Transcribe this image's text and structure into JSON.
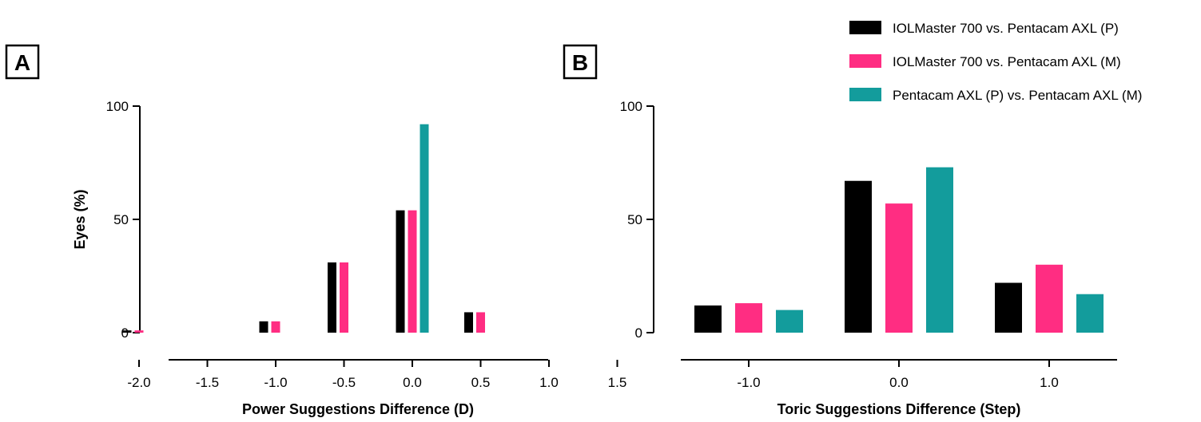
{
  "colors": {
    "series_p": "#000000",
    "series_m": "#ff2d82",
    "series_pm": "#139c9c"
  },
  "legend": {
    "placement": "top-right",
    "items": [
      {
        "label": "IOLMaster 700 vs. Pentacam AXL (P)",
        "color": "#000000"
      },
      {
        "label": "IOLMaster 700 vs. Pentacam AXL (M)",
        "color": "#ff2d82"
      },
      {
        "label": "Pentacam AXL (P) vs. Pentacam AXL (M)",
        "color": "#139c9c"
      }
    ]
  },
  "chart_data": [
    {
      "panel": "A",
      "type": "bar",
      "xlabel": "Power Suggestions Difference (D)",
      "ylabel": "Eyes (%)",
      "ylim": [
        0,
        100
      ],
      "yticks": [
        "0",
        "50",
        "100"
      ],
      "xlim": [
        -2.2,
        1.6
      ],
      "xticks": [
        "-2.0",
        "-1.5",
        "-1.0",
        "-0.5",
        "0.0",
        "0.5",
        "1.0",
        "1.5"
      ],
      "grid": false,
      "x": [
        -2.0,
        -1.0,
        -0.5,
        0.0,
        0.5
      ],
      "series": [
        {
          "name": "IOLMaster 700 vs. Pentacam AXL (P)",
          "values": [
            1,
            5,
            31,
            54,
            9
          ]
        },
        {
          "name": "IOLMaster 700 vs. Pentacam AXL (M)",
          "values": [
            1,
            5,
            31,
            54,
            9
          ]
        },
        {
          "name": "Pentacam AXL (P) vs. Pentacam AXL (M)",
          "values": [
            0,
            0,
            0,
            92,
            0
          ]
        }
      ]
    },
    {
      "panel": "B",
      "type": "bar",
      "xlabel": "Toric Suggestions Difference (Step)",
      "ylabel": "",
      "ylim": [
        0,
        100
      ],
      "yticks": [
        "0",
        "50",
        "100"
      ],
      "categories": [
        "-1.0",
        "0.0",
        "1.0"
      ],
      "grid": false,
      "series": [
        {
          "name": "IOLMaster 700 vs. Pentacam AXL (P)",
          "values": [
            12,
            67,
            22
          ]
        },
        {
          "name": "IOLMaster 700 vs. Pentacam AXL (M)",
          "values": [
            13,
            57,
            30
          ]
        },
        {
          "name": "Pentacam AXL (P) vs. Pentacam AXL (M)",
          "values": [
            10,
            73,
            17
          ]
        }
      ]
    }
  ]
}
